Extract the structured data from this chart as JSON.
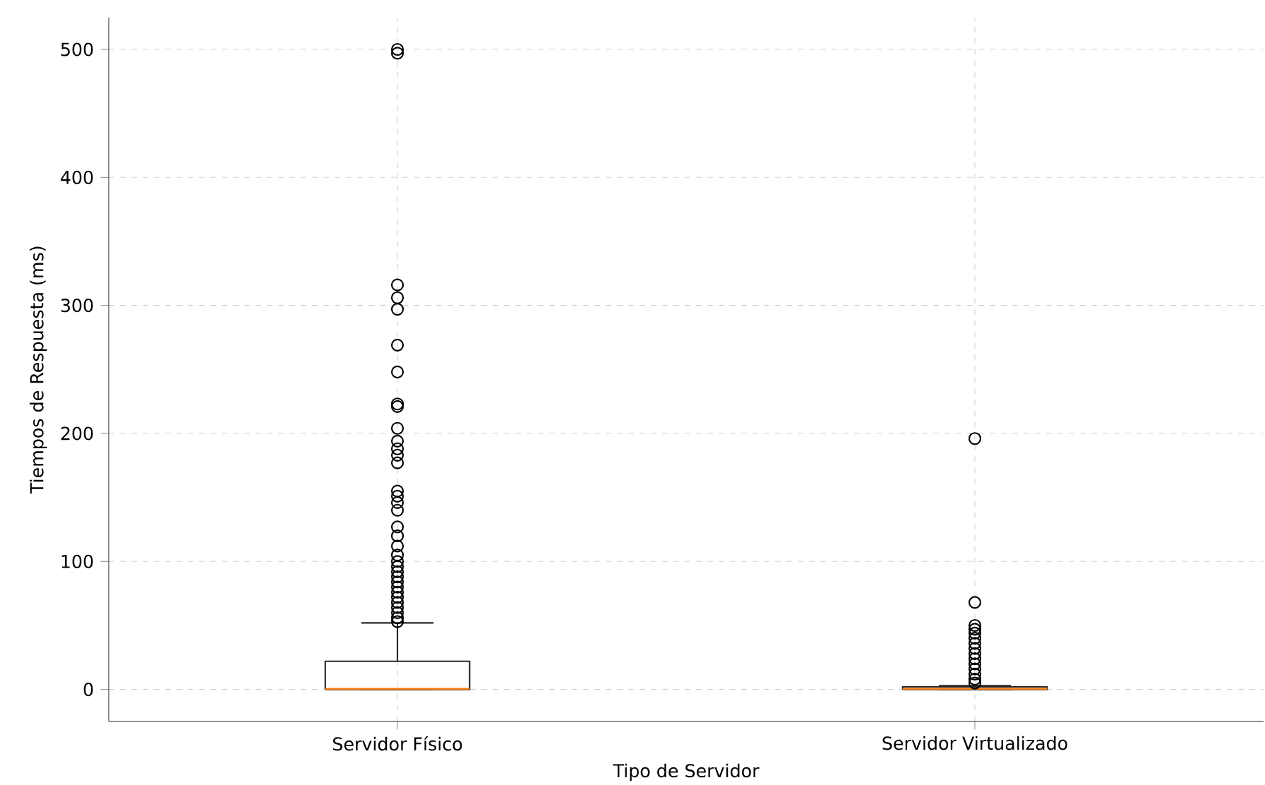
{
  "chart_data": {
    "type": "box",
    "xlabel": "Tipo de Servidor",
    "ylabel": "Tiempos de Respuesta (ms)",
    "categories": [
      "Servidor Físico",
      "Servidor Virtualizado"
    ],
    "boxes": [
      {
        "low": 0,
        "q1": 0,
        "median": 0.5,
        "q3": 22,
        "high": 52,
        "outliers": [
          500,
          497,
          316,
          306,
          297,
          269,
          248,
          223,
          221,
          204,
          194,
          188,
          183,
          177,
          155,
          151,
          146,
          140,
          127,
          120,
          112,
          105,
          100,
          96,
          92,
          88,
          84,
          80,
          76,
          72,
          68,
          64,
          60,
          56,
          53
        ]
      },
      {
        "low": 0,
        "q1": 0,
        "median": 0.5,
        "q3": 2,
        "high": 3,
        "outliers": [
          196,
          68,
          50,
          47,
          44,
          40,
          36,
          32,
          28,
          24,
          20,
          16,
          12,
          8,
          5
        ]
      }
    ],
    "ylim": [
      -25,
      525
    ],
    "yticks": [
      0,
      100,
      200,
      300,
      400,
      500
    ],
    "grid": true,
    "marker": "circle"
  }
}
